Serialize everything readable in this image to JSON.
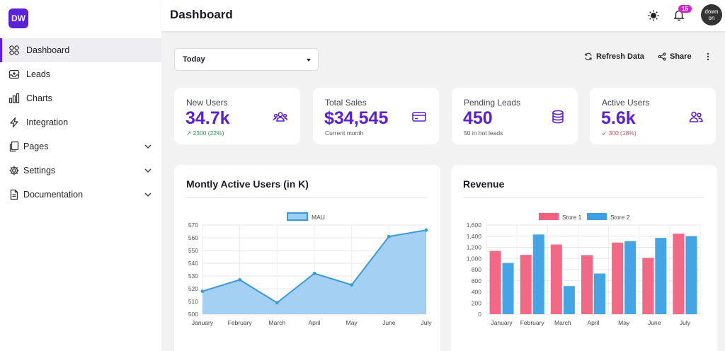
{
  "app": {
    "logo_text": "DW",
    "page_title": "Dashboard"
  },
  "sidebar": {
    "items": [
      {
        "label": "Dashboard",
        "icon": "grid-icon",
        "active": true
      },
      {
        "label": "Leads",
        "icon": "inbox-icon"
      },
      {
        "label": "Charts",
        "icon": "bar-chart-icon"
      },
      {
        "label": "Integration",
        "icon": "bolt-icon"
      },
      {
        "label": "Pages",
        "icon": "documents-icon",
        "expandable": true
      },
      {
        "label": "Settings",
        "icon": "gear-icon",
        "expandable": true
      },
      {
        "label": "Documentation",
        "icon": "document-icon",
        "expandable": true
      }
    ]
  },
  "header": {
    "notification_count": "15",
    "avatar_text_1": "down",
    "avatar_text_2": "on",
    "theme_icon": "sun-icon",
    "notification_icon": "bell-icon"
  },
  "toolbar": {
    "date_value": "Today",
    "refresh_label": "Refresh Data",
    "share_label": "Share"
  },
  "stats": [
    {
      "label": "New Users",
      "value": "34.7k",
      "desc": "↗ 2300 (22%)",
      "icon": "users-group-icon"
    },
    {
      "label": "Total Sales",
      "value": "$34,545",
      "desc": "Current month",
      "icon": "credit-card-icon"
    },
    {
      "label": "Pending Leads",
      "value": "450",
      "desc": "50 in hot leads",
      "icon": "database-icon"
    },
    {
      "label": "Active Users",
      "value": "5.6k",
      "desc": "↙ 300 (18%)",
      "icon": "users-icon"
    }
  ],
  "colors": {
    "accent": "#5b21d6",
    "line_stroke": "#3a9ad9",
    "line_fill": "#9fcdf3",
    "store1": "#f1617f",
    "store2": "#3a9fe3",
    "positive": "#2f8f5b",
    "negative": "#d94a5d"
  },
  "chart_data": [
    {
      "type": "area",
      "title": "Montly Active Users (in K)",
      "categories": [
        "January",
        "February",
        "March",
        "April",
        "May",
        "June",
        "July"
      ],
      "series": [
        {
          "name": "MAU",
          "values": [
            518,
            527,
            509,
            532,
            523,
            561,
            566
          ]
        }
      ],
      "ylim": [
        500,
        570
      ],
      "yticks": [
        500,
        510,
        520,
        530,
        540,
        550,
        560,
        570
      ],
      "legend": "top-center",
      "grid": true
    },
    {
      "type": "bar",
      "title": "Revenue",
      "categories": [
        "January",
        "February",
        "March",
        "April",
        "May",
        "June",
        "July"
      ],
      "series": [
        {
          "name": "Store 1",
          "values": [
            1135,
            1065,
            1250,
            1060,
            1285,
            1010,
            1445
          ]
        },
        {
          "name": "Store 2",
          "values": [
            920,
            1430,
            505,
            730,
            1310,
            1370,
            1400
          ]
        }
      ],
      "ylim": [
        0,
        1600
      ],
      "yticks": [
        0,
        200,
        400,
        600,
        800,
        1000,
        1200,
        1400,
        1600
      ],
      "ytick_labels": [
        "0",
        "200",
        "400",
        "600",
        "800",
        "1,000",
        "1,200",
        "1,400",
        "1,600"
      ],
      "legend": "top-center",
      "grid": true
    }
  ]
}
